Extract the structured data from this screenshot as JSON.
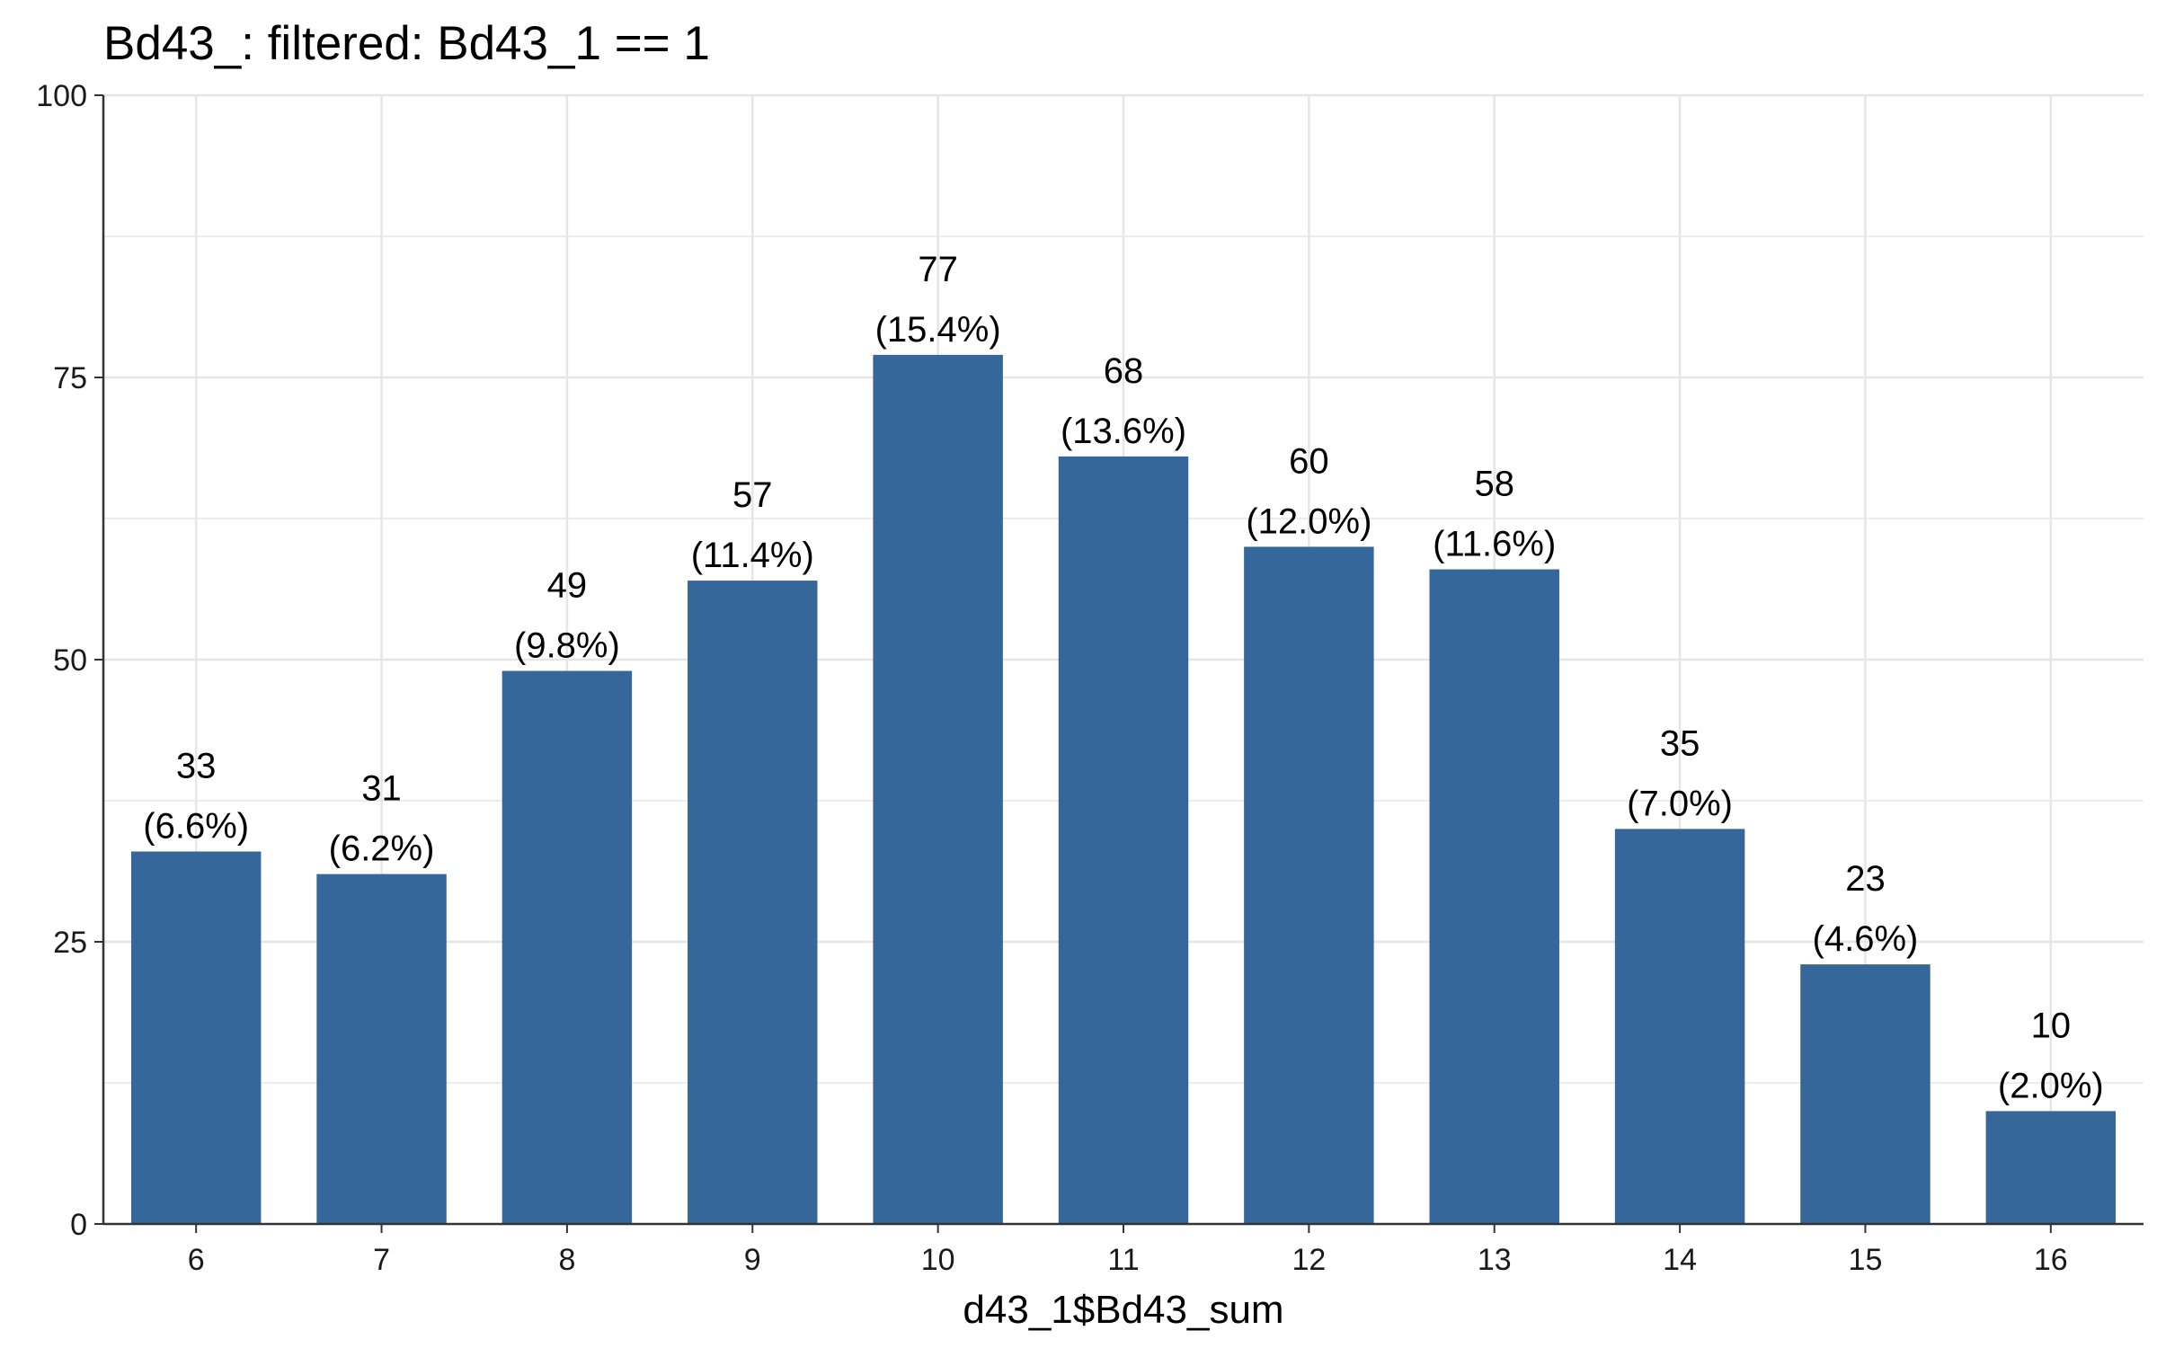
{
  "chart_data": {
    "type": "bar",
    "title": "Bd43_: filtered: Bd43_1 == 1",
    "xlabel": "d43_1$Bd43_sum",
    "ylabel": "",
    "categories": [
      "6",
      "7",
      "8",
      "9",
      "10",
      "11",
      "12",
      "13",
      "14",
      "15",
      "16"
    ],
    "values": [
      33,
      31,
      49,
      57,
      77,
      68,
      60,
      58,
      35,
      23,
      10
    ],
    "percent_labels": [
      "(6.6%)",
      "(6.2%)",
      "(9.8%)",
      "(11.4%)",
      "(15.4%)",
      "(13.6%)",
      "(12.0%)",
      "(11.6%)",
      "(7.0%)",
      "(4.6%)",
      "(2.0%)"
    ],
    "ylim": [
      0,
      100
    ],
    "yticks": [
      0,
      25,
      50,
      75,
      100
    ],
    "grid": true,
    "bar_color": "#35679a",
    "grid_color": "#e6e6e6",
    "axis_color": "#333333"
  }
}
